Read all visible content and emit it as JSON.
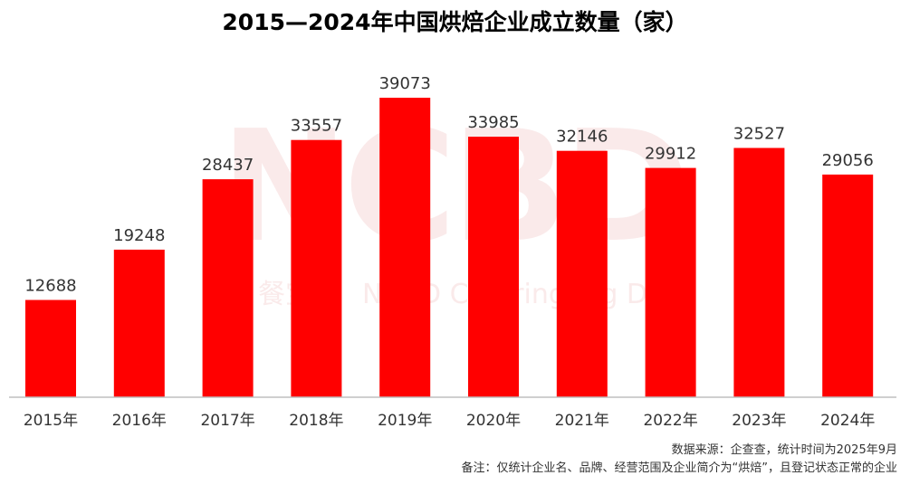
{
  "chart_data": {
    "type": "bar",
    "title": "2015—2024年中国烘焙企业成立数量（家）",
    "categories": [
      "2015年",
      "2016年",
      "2017年",
      "2018年",
      "2019年",
      "2020年",
      "2021年",
      "2022年",
      "2023年",
      "2024年"
    ],
    "values": [
      12688,
      19248,
      28437,
      33557,
      39073,
      33985,
      32146,
      29912,
      32527,
      29056
    ],
    "xlabel": "",
    "ylabel": "",
    "ylim": [
      0,
      39073
    ],
    "grid": false,
    "legend": "none",
    "bar_color": "#ff0000",
    "data_labels": true
  },
  "footnotes": {
    "source": "数据来源：企查查，统计时间为2025年9月",
    "note": "备注：仅统计企业名、品牌、经营范围及企业简介为“烘焙”，且登记状态正常的企业"
  },
  "watermark": {
    "logo_text": "NCBD",
    "brand_cn": "餐宝典",
    "brand_en": "NCBD Catering Big Data"
  }
}
